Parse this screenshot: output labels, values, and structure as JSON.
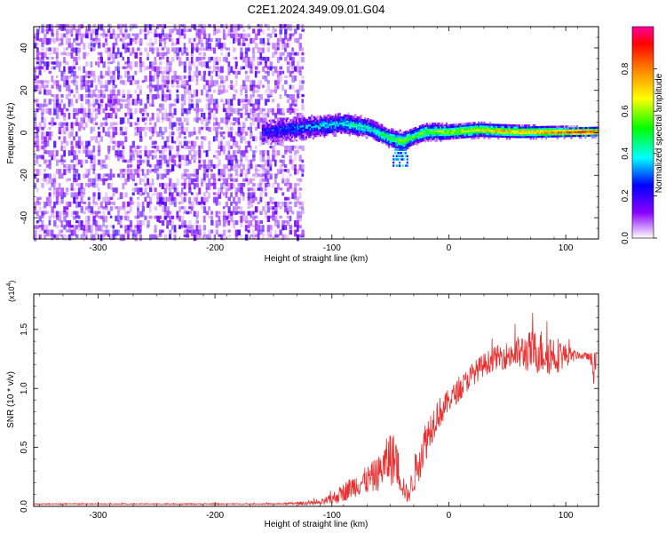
{
  "title": "C2E1.2024.349.09.01.G04",
  "colors": {
    "snr_line": "#e83030",
    "psd_purple": "#6a1be0",
    "colormap": [
      "#ffffff",
      "#8a00ff",
      "#0000ff",
      "#00ffff",
      "#00ff00",
      "#ffff00",
      "#ff8000",
      "#ff0000",
      "#ff00a0"
    ]
  },
  "chart_data": [
    {
      "id": "spectrogram",
      "type": "heatmap",
      "xlabel": "Height of straight line (km)",
      "ylabel": "Frequency (Hz)",
      "xlim": [
        -355,
        128
      ],
      "ylim": [
        -50,
        50
      ],
      "xticks": [
        -300,
        -200,
        -100,
        0,
        100
      ],
      "yticks": [
        -40,
        -20,
        0,
        20,
        40
      ],
      "colorbar": {
        "label": "Normalized spectral amplitude",
        "range": [
          0,
          1
        ],
        "ticks": [
          "0.0",
          "0.2",
          "0.4",
          "0.6",
          "0.8"
        ]
      },
      "regions": [
        {
          "name": "noise",
          "x": [
            -355,
            -125
          ],
          "y": [
            -50,
            50
          ],
          "amplitude": 0.15
        },
        {
          "name": "signal",
          "x": [
            -160,
            128
          ],
          "center_freq": [
            [
              -160,
              0
            ],
            [
              -90,
              4
            ],
            [
              -70,
              2
            ],
            [
              -50,
              -3
            ],
            [
              -40,
              -4
            ],
            [
              -20,
              0
            ],
            [
              0,
              0
            ],
            [
              25,
              1
            ],
            [
              60,
              0
            ],
            [
              128,
              0
            ]
          ],
          "amplitude_peak": 0.95
        }
      ]
    },
    {
      "id": "snr",
      "type": "line",
      "xlabel": "Height of straight line (km)",
      "ylabel": "SNR (10 * v/v)",
      "y_multiplier": "(x10",
      "y_multiplier_exp": "4",
      "y_multiplier_close": ")",
      "xlim": [
        -355,
        128
      ],
      "ylim": [
        0,
        1.8
      ],
      "xticks": [
        -300,
        -200,
        -100,
        0,
        100
      ],
      "yticks": [
        "0.0",
        "0.5",
        "1.0",
        "1.5"
      ],
      "ytick_values": [
        0,
        0.5,
        1.0,
        1.5
      ],
      "series": [
        {
          "x": [
            -355,
            -300,
            -250,
            -200,
            -150,
            -110,
            -100,
            -90,
            -80,
            -70,
            -60,
            -55,
            -50,
            -45,
            -40,
            -35,
            -30,
            -25,
            -20,
            -15,
            -10,
            -5,
            0,
            10,
            20,
            30,
            40,
            50,
            60,
            70,
            80,
            90,
            100,
            110,
            120,
            126
          ],
          "y": [
            0.02,
            0.02,
            0.02,
            0.02,
            0.02,
            0.03,
            0.06,
            0.12,
            0.18,
            0.22,
            0.28,
            0.35,
            0.42,
            0.38,
            0.2,
            0.08,
            0.25,
            0.42,
            0.55,
            0.68,
            0.78,
            0.82,
            0.9,
            1.0,
            1.12,
            1.2,
            1.26,
            1.28,
            1.3,
            1.31,
            1.31,
            1.29,
            1.28,
            1.28,
            1.27,
            1.12
          ],
          "noise": [
            0.005,
            0.005,
            0.005,
            0.005,
            0.005,
            0.02,
            0.05,
            0.08,
            0.1,
            0.12,
            0.15,
            0.18,
            0.25,
            0.2,
            0.12,
            0.06,
            0.15,
            0.2,
            0.18,
            0.16,
            0.14,
            0.12,
            0.1,
            0.1,
            0.1,
            0.1,
            0.1,
            0.12,
            0.15,
            0.18,
            0.2,
            0.18,
            0.1,
            0.03,
            0.03,
            0.2
          ]
        }
      ]
    }
  ]
}
